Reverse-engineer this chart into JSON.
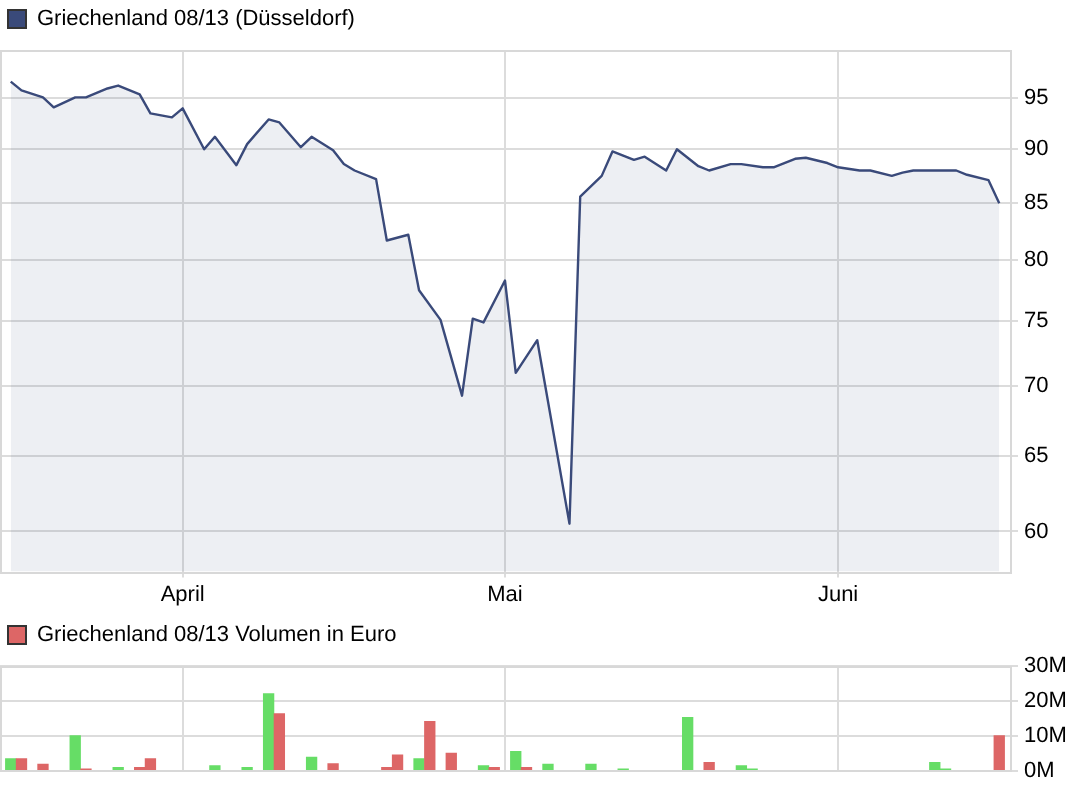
{
  "chart_data": [
    {
      "type": "area",
      "log": "y",
      "grid": true,
      "legend": "top left",
      "xlim": [
        "--03-15",
        "--06-17"
      ],
      "xticks": [
        {
          "value": "--04-01",
          "label": "April"
        },
        {
          "value": "--05-01",
          "label": "Mai"
        },
        {
          "value": "--06-01",
          "label": "Juni"
        }
      ],
      "ylim": [
        57.5,
        100
      ],
      "yticks": [
        60,
        65,
        70,
        75,
        80,
        85,
        90,
        95
      ],
      "x": [
        "--03-16",
        "--03-17",
        "--03-19",
        "--03-20",
        "--03-22",
        "--03-23",
        "--03-25",
        "--03-26",
        "--03-28",
        "--03-29",
        "--03-31",
        "--04-01",
        "--04-03",
        "--04-04",
        "--04-06",
        "--04-07",
        "--04-09",
        "--04-10",
        "--04-12",
        "--04-13",
        "--04-15",
        "--04-16",
        "--04-17",
        "--04-19",
        "--04-20",
        "--04-22",
        "--04-23",
        "--04-25",
        "--04-27",
        "--04-28",
        "--04-29",
        "--05-01",
        "--05-02",
        "--05-04",
        "--05-07",
        "--05-08",
        "--05-10",
        "--05-11",
        "--05-13",
        "--05-14",
        "--05-16",
        "--05-17",
        "--05-19",
        "--05-20",
        "--05-22",
        "--05-23",
        "--05-25",
        "--05-26",
        "--05-28",
        "--05-29",
        "--05-31",
        "--06-01",
        "--06-03",
        "--06-04",
        "--06-06",
        "--06-07",
        "--06-08",
        "--06-10",
        "--06-12",
        "--06-13",
        "--06-15",
        "--06-16"
      ],
      "series": [
        {
          "name": "Griechenland 08/13 (Düsseldorf)",
          "color": "#3a4a7a",
          "values": [
            96.7,
            95.8,
            95.1,
            94.1,
            95.1,
            95.1,
            96.0,
            96.3,
            95.4,
            93.5,
            93.1,
            94.0,
            90.0,
            91.2,
            88.5,
            90.5,
            92.9,
            92.6,
            90.2,
            91.2,
            89.9,
            88.6,
            88.0,
            87.2,
            81.7,
            82.2,
            77.5,
            75.1,
            69.3,
            75.2,
            74.9,
            78.3,
            71.0,
            73.5,
            60.5,
            85.6,
            87.5,
            89.8,
            89.0,
            89.3,
            88.0,
            90.0,
            88.4,
            88.0,
            88.6,
            88.6,
            88.3,
            88.3,
            89.1,
            89.2,
            88.7,
            88.3,
            88.0,
            88.0,
            87.5,
            87.8,
            88.0,
            88.0,
            88.0,
            87.6,
            87.1,
            85.0
          ]
        }
      ]
    },
    {
      "type": "bar",
      "grid": true,
      "legend": "top left",
      "tick_labels": "y",
      "xlim": [
        "--03-15",
        "--06-17"
      ],
      "xticks": [
        {
          "value": "--04-01",
          "label": null
        },
        {
          "value": "--05-01",
          "label": null
        },
        {
          "value": "--06-01",
          "label": null
        }
      ],
      "ylim": [
        0,
        30
      ],
      "yticks": [
        {
          "value": 0,
          "label": "0M"
        },
        {
          "value": 10,
          "label": "10M"
        },
        {
          "value": 20,
          "label": "20M"
        },
        {
          "value": 30,
          "label": "30M"
        }
      ],
      "x": [
        "--03-16",
        "--03-17",
        "--03-19",
        "--03-22",
        "--03-23",
        "--03-26",
        "--03-28",
        "--03-29",
        "--04-04",
        "--04-07",
        "--04-09",
        "--04-10",
        "--04-13",
        "--04-15",
        "--04-20",
        "--04-21",
        "--04-23",
        "--04-24",
        "--04-26",
        "--04-29",
        "--04-30",
        "--05-02",
        "--05-03",
        "--05-05",
        "--05-09",
        "--05-12",
        "--05-18",
        "--05-20",
        "--05-23",
        "--05-24",
        "--06-10",
        "--06-11",
        "--06-16"
      ],
      "series": [
        {
          "name": "Griechenland 08/13 Volumen in Euro",
          "color": "#dd6666",
          "colors": [
            "#66dd66",
            "#dd6666",
            "#dd6666",
            "#66dd66",
            "#dd6666",
            "#66dd66",
            "#dd6666",
            "#dd6666",
            "#66dd66",
            "#66dd66",
            "#66dd66",
            "#dd6666",
            "#66dd66",
            "#dd6666",
            "#dd6666",
            "#dd6666",
            "#66dd66",
            "#dd6666",
            "#dd6666",
            "#66dd66",
            "#dd6666",
            "#66dd66",
            "#dd6666",
            "#66dd66",
            "#66dd66",
            "#66dd66",
            "#66dd66",
            "#dd6666",
            "#66dd66",
            "#66dd66",
            "#66dd66",
            "#66dd66",
            "#dd6666"
          ],
          "values": [
            3.4,
            3.4,
            1.8,
            10,
            0.5,
            0.9,
            0.9,
            3.4,
            1.4,
            0.9,
            22,
            16.3,
            3.8,
            2.0,
            0.9,
            4.5,
            3.4,
            14.1,
            5.0,
            1.4,
            0.9,
            5.5,
            0.9,
            1.8,
            1.8,
            0.5,
            15.2,
            2.3,
            1.4,
            0.5,
            2.3,
            0.5,
            10
          ]
        }
      ]
    }
  ]
}
